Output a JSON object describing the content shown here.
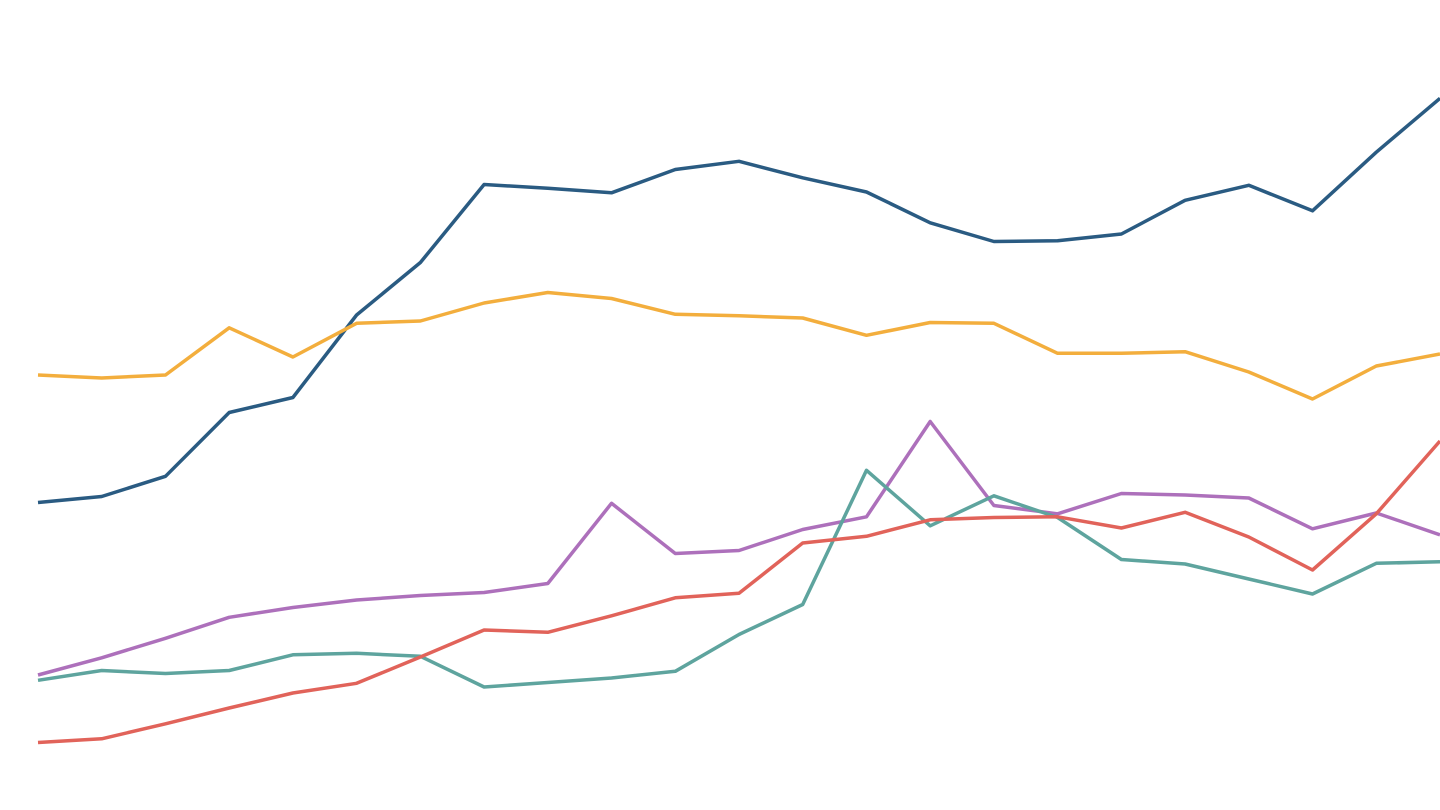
{
  "chart_data": {
    "type": "line",
    "title": "",
    "xlabel": "",
    "ylabel": "",
    "x": [
      1,
      2,
      3,
      4,
      5,
      6,
      7,
      8,
      9,
      10,
      11,
      12,
      13,
      14,
      15,
      16,
      17,
      18,
      19,
      20,
      21,
      22,
      23
    ],
    "xlim": [
      1,
      23
    ],
    "ylim": [
      0,
      100
    ],
    "grid": false,
    "legend": "none",
    "series": [
      {
        "color": "#2a5b82",
        "values": [
          37.0,
          37.8,
          40.5,
          49.0,
          51.0,
          62.0,
          69.0,
          79.4,
          78.9,
          78.3,
          81.4,
          82.5,
          80.3,
          78.4,
          74.3,
          71.8,
          71.9,
          72.8,
          77.3,
          79.3,
          75.9,
          83.7,
          90.9
        ]
      },
      {
        "color": "#f3ae3d",
        "values": [
          54.0,
          53.6,
          54.0,
          60.3,
          56.4,
          60.9,
          61.2,
          63.6,
          65.0,
          64.2,
          62.1,
          61.9,
          61.6,
          59.3,
          61.0,
          60.9,
          56.9,
          56.9,
          57.1,
          54.4,
          50.8,
          55.2,
          56.8
        ]
      },
      {
        "color": "#ad70bb",
        "values": [
          14.0,
          16.3,
          18.9,
          21.7,
          23.0,
          24.0,
          24.6,
          25.0,
          26.2,
          36.9,
          30.2,
          30.6,
          33.4,
          35.1,
          47.8,
          36.6,
          35.5,
          38.2,
          38.0,
          37.6,
          33.5,
          35.6,
          32.7
        ]
      },
      {
        "color": "#5ea49e",
        "values": [
          13.3,
          14.6,
          14.2,
          14.6,
          16.7,
          16.9,
          16.5,
          12.4,
          13.0,
          13.6,
          14.5,
          19.4,
          23.4,
          41.3,
          33.9,
          37.9,
          35.0,
          29.4,
          28.8,
          26.8,
          24.8,
          28.9,
          29.1
        ]
      },
      {
        "color": "#e1635a",
        "values": [
          5.0,
          5.5,
          7.5,
          9.6,
          11.6,
          12.9,
          16.4,
          20.0,
          19.7,
          21.9,
          24.3,
          24.9,
          31.6,
          32.5,
          34.7,
          35.0,
          35.1,
          33.6,
          35.7,
          32.4,
          28.0,
          35.5,
          45.2
        ]
      }
    ]
  }
}
